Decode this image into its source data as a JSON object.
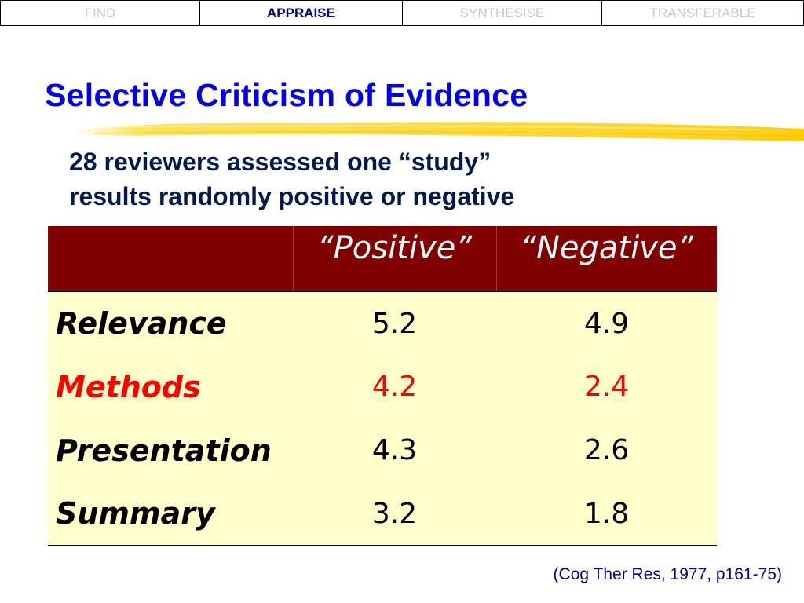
{
  "nav": {
    "tabs": [
      {
        "label": "FIND",
        "active": false
      },
      {
        "label": "APPRAISE",
        "active": true
      },
      {
        "label": "SYNTHESISE",
        "active": false
      },
      {
        "label": "TRANSFERABLE",
        "active": false
      }
    ]
  },
  "slide": {
    "title": "Selective Criticism of Evidence",
    "subtitle_line1": "28 reviewers assessed one “study”",
    "subtitle_line2": "results randomly positive or negative",
    "citation": "(Cog Ther Res, 1977, p161-75)"
  },
  "table": {
    "headers": [
      "",
      "“Positive”",
      "“Negative”"
    ],
    "rows": [
      {
        "label": "Relevance",
        "positive": "5.2",
        "negative": "4.9"
      },
      {
        "label": "Methods",
        "positive": "4.2",
        "negative": "2.4"
      },
      {
        "label": "Presentation",
        "positive": "4.3",
        "negative": "2.6"
      },
      {
        "label": "Summary",
        "positive": "3.2",
        "negative": "1.8"
      }
    ]
  },
  "colors": {
    "title": "#0000ee",
    "header_bg": "#800000",
    "body_bg": "#ffffcc",
    "highlight_row_text": "#ff0000",
    "highlighter": "#ffd700"
  }
}
